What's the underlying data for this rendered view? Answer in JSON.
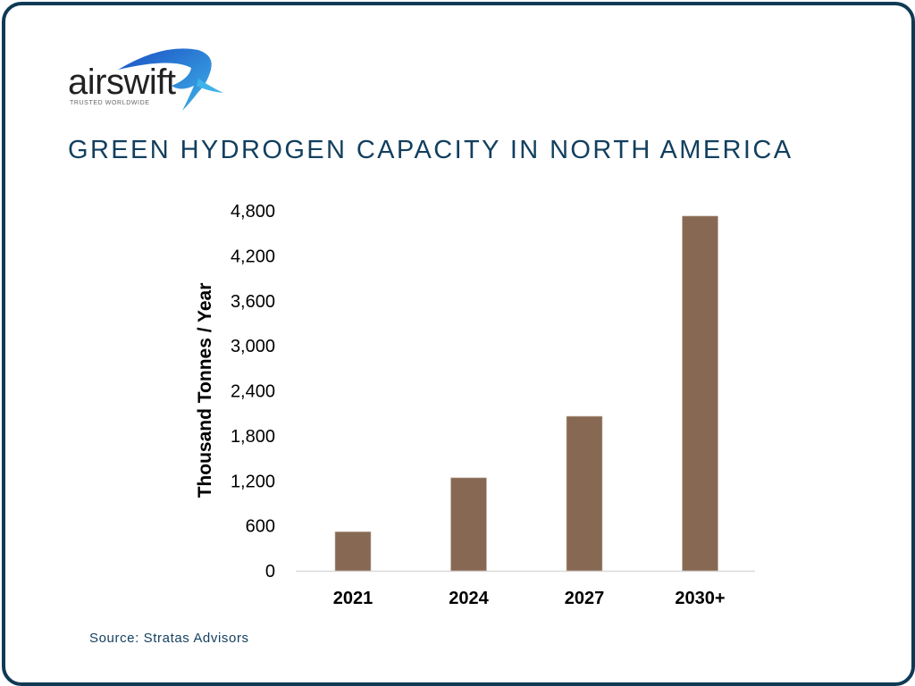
{
  "logo": {
    "name": "airswift",
    "tagline": "TRUSTED WORLDWIDE"
  },
  "title": "GREEN HYDROGEN CAPACITY IN NORTH AMERICA",
  "source": "Source: Stratas Advisors",
  "colors": {
    "bar": "#876953",
    "frame": "#0f3a55",
    "title": "#123f5e"
  },
  "chart_data": {
    "type": "bar",
    "title": "GREEN HYDROGEN CAPACITY IN NORTH AMERICA",
    "categories": [
      "2021",
      "2024",
      "2027",
      "2030+"
    ],
    "values": [
      520,
      1240,
      2060,
      4730
    ],
    "xlabel": "",
    "ylabel": "Thousand Tonnes / Year",
    "ylim": [
      0,
      4800
    ],
    "yticks": [
      "0",
      "600",
      "1,200",
      "1,800",
      "2,400",
      "3,000",
      "3,600",
      "4,200",
      "4,800"
    ],
    "grid": false,
    "legend": "none"
  }
}
